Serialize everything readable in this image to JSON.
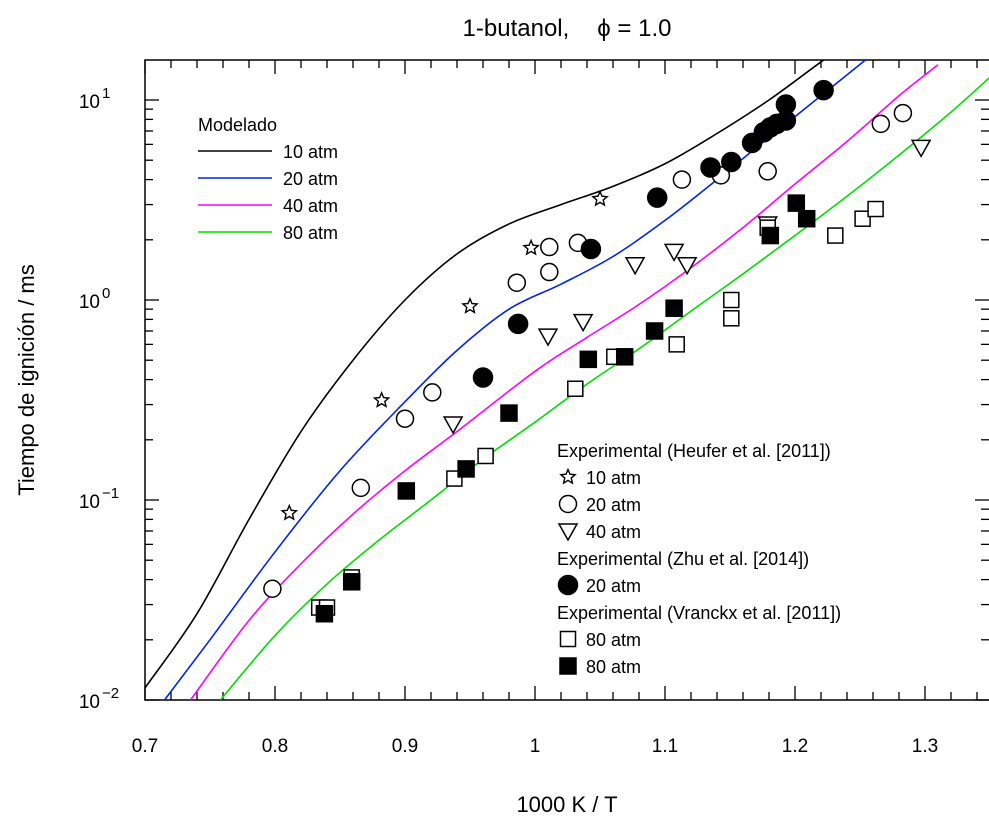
{
  "chart_data": {
    "type": "scatter",
    "title_name": "1-butanol,",
    "title_phi": "ϕ = 1.0",
    "xlabel": "1000 K / T",
    "ylabel": "Tiempo de ignición / ms",
    "xlim": [
      0.7,
      1.35
    ],
    "ylim": [
      0.01,
      15
    ],
    "yscale": "log",
    "grid": false,
    "x_ticks": [
      {
        "value": 0.7,
        "label": "0.7"
      },
      {
        "value": 0.8,
        "label": "0.8"
      },
      {
        "value": 0.9,
        "label": "0.9"
      },
      {
        "value": 1.0,
        "label": "1"
      },
      {
        "value": 1.1,
        "label": "1.1"
      },
      {
        "value": 1.2,
        "label": "1.2"
      },
      {
        "value": 1.3,
        "label": "1.3"
      }
    ],
    "y_ticks": [
      {
        "value": 0.01,
        "base": "10",
        "exp": "−2"
      },
      {
        "value": 0.1,
        "base": "10",
        "exp": "−1"
      },
      {
        "value": 1,
        "base": "10",
        "exp": "0"
      },
      {
        "value": 10,
        "base": "10",
        "exp": "1"
      }
    ],
    "legend_model_title": "Modelado",
    "model_lines": [
      {
        "name": "10 atm",
        "color": "#000000",
        "x": [
          0.7,
          0.74,
          0.78,
          0.82,
          0.86,
          0.9,
          0.94,
          0.98,
          1.02,
          1.06,
          1.1,
          1.14,
          1.18,
          1.22,
          1.24
        ],
        "y": [
          0.0115,
          0.027,
          0.08,
          0.22,
          0.5,
          1.0,
          1.7,
          2.4,
          3.0,
          3.7,
          4.8,
          6.8,
          10.0,
          15.5,
          19.0
        ]
      },
      {
        "name": "20 atm",
        "color": "#0022ee",
        "x": [
          0.715,
          0.75,
          0.8,
          0.85,
          0.9,
          0.94,
          0.98,
          1.02,
          1.06,
          1.1,
          1.14,
          1.18,
          1.22,
          1.26
        ],
        "y": [
          0.01,
          0.02,
          0.055,
          0.14,
          0.31,
          0.56,
          0.9,
          1.2,
          1.65,
          2.5,
          4.0,
          6.5,
          10.5,
          17.0
        ]
      },
      {
        "name": "40 atm",
        "color": "#ff00ff",
        "x": [
          0.735,
          0.78,
          0.82,
          0.86,
          0.9,
          0.94,
          1.0,
          1.04,
          1.08,
          1.12,
          1.16,
          1.2,
          1.24,
          1.28,
          1.31
        ],
        "y": [
          0.01,
          0.025,
          0.048,
          0.085,
          0.14,
          0.22,
          0.44,
          0.65,
          0.95,
          1.45,
          2.3,
          3.8,
          6.2,
          10.5,
          15.0
        ]
      },
      {
        "name": "80 atm",
        "color": "#00dd00",
        "x": [
          0.758,
          0.8,
          0.84,
          0.88,
          0.92,
          0.96,
          1.0,
          1.04,
          1.08,
          1.12,
          1.16,
          1.2,
          1.24,
          1.28,
          1.32,
          1.35
        ],
        "y": [
          0.01,
          0.021,
          0.038,
          0.063,
          0.1,
          0.16,
          0.245,
          0.38,
          0.57,
          0.88,
          1.35,
          2.1,
          3.3,
          5.3,
          8.7,
          13.0
        ]
      }
    ],
    "experimental_groups": [
      {
        "heading": "Experimental (Heufer et al. [2011])",
        "series": [
          {
            "name": "10 atm",
            "marker": "star",
            "points": [
              [
                0.811,
                0.086
              ],
              [
                0.882,
                0.315
              ],
              [
                0.95,
                0.93
              ],
              [
                0.997,
                1.82
              ],
              [
                1.05,
                3.2
              ]
            ]
          },
          {
            "name": "20 atm",
            "marker": "circle-open",
            "points": [
              [
                0.798,
                0.036
              ],
              [
                0.866,
                0.115
              ],
              [
                0.9,
                0.255
              ],
              [
                0.921,
                0.345
              ],
              [
                0.986,
                1.22
              ],
              [
                1.011,
                1.84
              ],
              [
                1.011,
                1.38
              ],
              [
                1.033,
                1.93
              ],
              [
                1.113,
                4.0
              ],
              [
                1.143,
                4.2
              ],
              [
                1.179,
                4.4
              ],
              [
                1.266,
                7.6
              ],
              [
                1.283,
                8.6
              ]
            ]
          },
          {
            "name": "40 atm",
            "marker": "triangle-down-open",
            "points": [
              [
                0.937,
                0.24
              ],
              [
                1.01,
                0.66
              ],
              [
                1.037,
                0.78
              ],
              [
                1.077,
                1.5
              ],
              [
                1.107,
                1.75
              ],
              [
                1.117,
                1.5
              ],
              [
                1.179,
                2.4
              ],
              [
                1.297,
                5.8
              ]
            ]
          }
        ]
      },
      {
        "heading": "Experimental (Zhu et al. [2014])",
        "series": [
          {
            "name": "20 atm",
            "marker": "circle-filled",
            "points": [
              [
                0.96,
                0.41
              ],
              [
                0.987,
                0.76
              ],
              [
                1.043,
                1.8
              ],
              [
                1.094,
                3.25
              ],
              [
                1.135,
                4.6
              ],
              [
                1.151,
                4.9
              ],
              [
                1.167,
                6.1
              ],
              [
                1.176,
                6.9
              ],
              [
                1.181,
                7.3
              ],
              [
                1.186,
                7.6
              ],
              [
                1.193,
                7.9
              ],
              [
                1.193,
                9.5
              ],
              [
                1.222,
                11.2
              ]
            ]
          }
        ]
      },
      {
        "heading": "Experimental (Vranckx et al. [2011])",
        "series": [
          {
            "name": "80 atm",
            "marker": "square-open",
            "points": [
              [
                0.834,
                0.029
              ],
              [
                0.84,
                0.029
              ],
              [
                0.859,
                0.041
              ],
              [
                0.938,
                0.128
              ],
              [
                0.962,
                0.166
              ],
              [
                1.031,
                0.36
              ],
              [
                1.061,
                0.52
              ],
              [
                1.109,
                0.6
              ],
              [
                1.151,
                1.0
              ],
              [
                1.151,
                0.81
              ],
              [
                1.231,
                2.1
              ],
              [
                1.252,
                2.55
              ],
              [
                1.262,
                2.85
              ],
              [
                1.179,
                2.3
              ]
            ]
          },
          {
            "name": "80 atm",
            "marker": "square-filled",
            "points": [
              [
                0.838,
                0.027
              ],
              [
                0.859,
                0.039
              ],
              [
                0.901,
                0.111
              ],
              [
                0.947,
                0.143
              ],
              [
                0.98,
                0.272
              ],
              [
                1.041,
                0.505
              ],
              [
                1.069,
                0.52
              ],
              [
                1.092,
                0.7
              ],
              [
                1.107,
                0.91
              ],
              [
                1.181,
                2.1
              ],
              [
                1.201,
                3.05
              ],
              [
                1.209,
                2.55
              ]
            ]
          }
        ]
      }
    ]
  }
}
